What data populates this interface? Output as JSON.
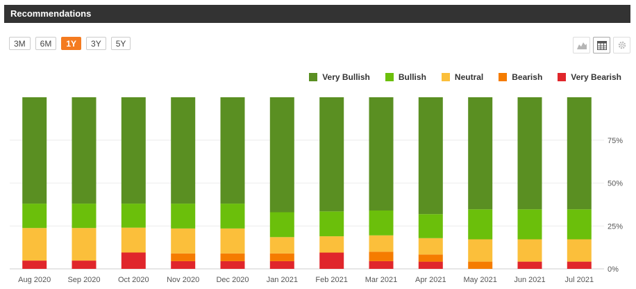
{
  "header": {
    "title": "Recommendations"
  },
  "ranges": [
    {
      "label": "3M",
      "active": false
    },
    {
      "label": "6M",
      "active": false
    },
    {
      "label": "1Y",
      "active": true
    },
    {
      "label": "3Y",
      "active": false
    },
    {
      "label": "5Y",
      "active": false
    }
  ],
  "tools": [
    {
      "icon": "area-chart-icon",
      "active": false
    },
    {
      "icon": "table-icon",
      "active": true
    },
    {
      "icon": "gear-icon",
      "active": false
    }
  ],
  "chart_data": {
    "type": "bar",
    "stacked": true,
    "categories": [
      "Aug 2020",
      "Sep 2020",
      "Oct 2020",
      "Nov 2020",
      "Dec 2020",
      "Jan 2021",
      "Feb 2021",
      "Mar 2021",
      "Apr 2021",
      "May 2021",
      "Jun 2021",
      "Jul 2021"
    ],
    "series": [
      {
        "name": "Very Bearish",
        "color": "#e0262b",
        "values": [
          4.8,
          4.8,
          9.5,
          4.5,
          4.5,
          4.5,
          9.5,
          4.5,
          4.2,
          0,
          4.2,
          4.2
        ]
      },
      {
        "name": "Bearish",
        "color": "#f57c00",
        "values": [
          0,
          0,
          0,
          4.5,
          4.5,
          4.5,
          0,
          5.5,
          4.2,
          4.2,
          0,
          0
        ]
      },
      {
        "name": "Neutral",
        "color": "#fbbf3b",
        "values": [
          19,
          19,
          14.5,
          14.5,
          14.5,
          9.5,
          9.5,
          9.5,
          9.5,
          13,
          13,
          13
        ]
      },
      {
        "name": "Bullish",
        "color": "#6bbf0b",
        "values": [
          14.2,
          14.2,
          14,
          14.5,
          14.5,
          14.5,
          14.5,
          14.5,
          14,
          17.5,
          17.5,
          17.5
        ]
      },
      {
        "name": "Very Bullish",
        "color": "#5a8f22",
        "values": [
          62,
          62,
          62,
          62,
          62,
          67,
          66.5,
          66,
          68.1,
          65.3,
          65.3,
          65.3
        ]
      }
    ],
    "legend_order": [
      "Very Bullish",
      "Bullish",
      "Neutral",
      "Bearish",
      "Very Bearish"
    ],
    "yticks": [
      "0%",
      "25%",
      "50%",
      "75%"
    ],
    "ytick_values": [
      0,
      25,
      50,
      75
    ],
    "ylim": [
      0,
      100
    ],
    "yaxis_side": "right",
    "legend_position": "top-right",
    "grid": true
  }
}
